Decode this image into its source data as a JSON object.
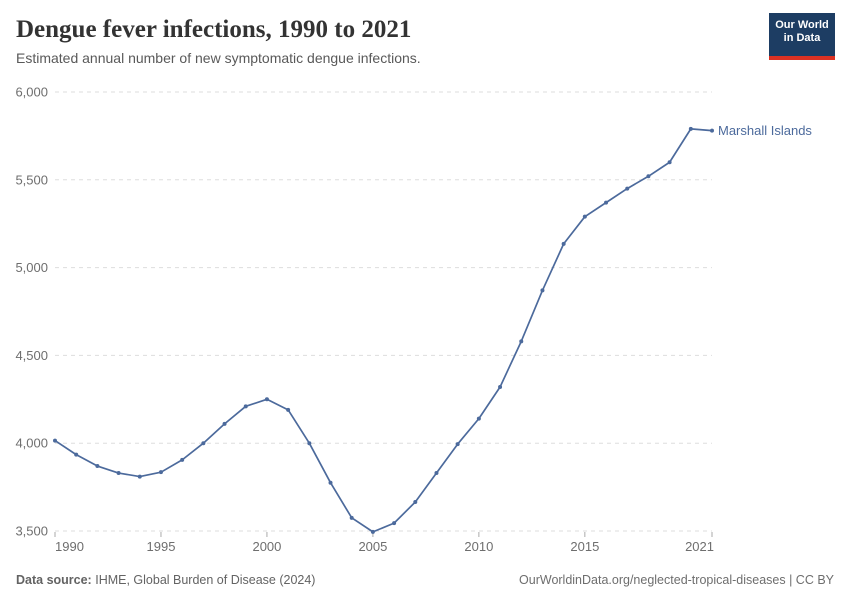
{
  "header": {
    "title": "Dengue fever infections, 1990 to 2021",
    "subtitle": "Estimated annual number of new symptomatic dengue infections."
  },
  "logo": {
    "line1": "Our World",
    "line2": "in Data"
  },
  "chart_data": {
    "type": "line",
    "title": "Dengue fever infections, 1990 to 2021",
    "xlabel": "",
    "ylabel": "",
    "ylim": [
      3500,
      6000
    ],
    "xlim": [
      1990,
      2021
    ],
    "yticks": [
      3500,
      4000,
      4500,
      5000,
      5500,
      6000
    ],
    "ytick_labels": [
      "3,500",
      "4,000",
      "4,500",
      "5,000",
      "5,500",
      "6,000"
    ],
    "xticks": [
      1990,
      1995,
      2000,
      2005,
      2010,
      2015,
      2021
    ],
    "xtick_labels": [
      "1990",
      "1995",
      "2000",
      "2005",
      "2010",
      "2015",
      "2021"
    ],
    "grid": "horizontal-dashed",
    "legend_position": "end-of-line-label",
    "series": [
      {
        "name": "Marshall Islands",
        "color": "#4C6A9C",
        "x": [
          1990,
          1991,
          1992,
          1993,
          1994,
          1995,
          1996,
          1997,
          1998,
          1999,
          2000,
          2001,
          2002,
          2003,
          2004,
          2005,
          2006,
          2007,
          2008,
          2009,
          2010,
          2011,
          2012,
          2013,
          2014,
          2015,
          2016,
          2017,
          2018,
          2019,
          2020,
          2021
        ],
        "values": [
          4015,
          3935,
          3870,
          3830,
          3810,
          3835,
          3905,
          4000,
          4110,
          4210,
          4250,
          4190,
          4000,
          3775,
          3575,
          3495,
          3545,
          3665,
          3830,
          3995,
          4140,
          4320,
          4580,
          4870,
          5135,
          5290,
          5370,
          5450,
          5520,
          5600,
          5790,
          5780
        ]
      }
    ]
  },
  "footer": {
    "datasource_label": "Data source:",
    "datasource_text": "IHME, Global Burden of Disease (2024)",
    "credit": "OurWorldinData.org/neglected-tropical-diseases | CC BY"
  },
  "colors": {
    "line": "#4C6A9C",
    "grid": "#dddddd",
    "tick_mark": "#aaaaaa",
    "axis_text": "#6e6e6e",
    "title": "#333333",
    "subtitle": "#595959",
    "logo_bg": "#1d3d63",
    "logo_accent": "#dc3122"
  }
}
